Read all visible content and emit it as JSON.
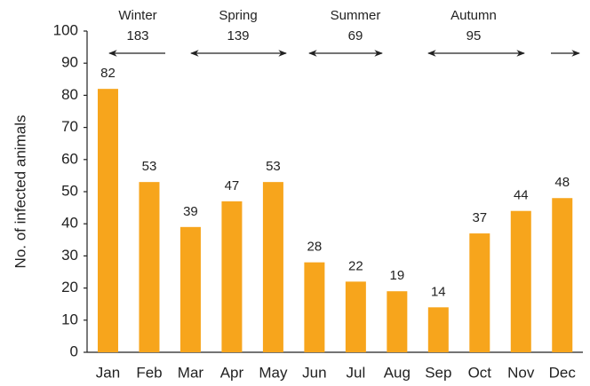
{
  "chart_data": {
    "type": "bar",
    "y_label": "No. of infected animals",
    "categories": [
      "Jan",
      "Feb",
      "Mar",
      "Apr",
      "May",
      "Jun",
      "Jul",
      "Aug",
      "Sep",
      "Oct",
      "Nov",
      "Dec"
    ],
    "values": [
      82,
      53,
      39,
      47,
      53,
      28,
      22,
      19,
      14,
      37,
      44,
      48
    ],
    "color": "#f7a51c",
    "ylim": [
      0,
      100
    ],
    "yticks": [
      0,
      10,
      20,
      30,
      40,
      50,
      60,
      70,
      80,
      90,
      100
    ],
    "grid": false,
    "seasons": [
      {
        "name": "Winter",
        "total": 183
      },
      {
        "name": "Spring",
        "total": 139
      },
      {
        "name": "Summer",
        "total": 69
      },
      {
        "name": "Autumn",
        "total": 95
      }
    ]
  }
}
